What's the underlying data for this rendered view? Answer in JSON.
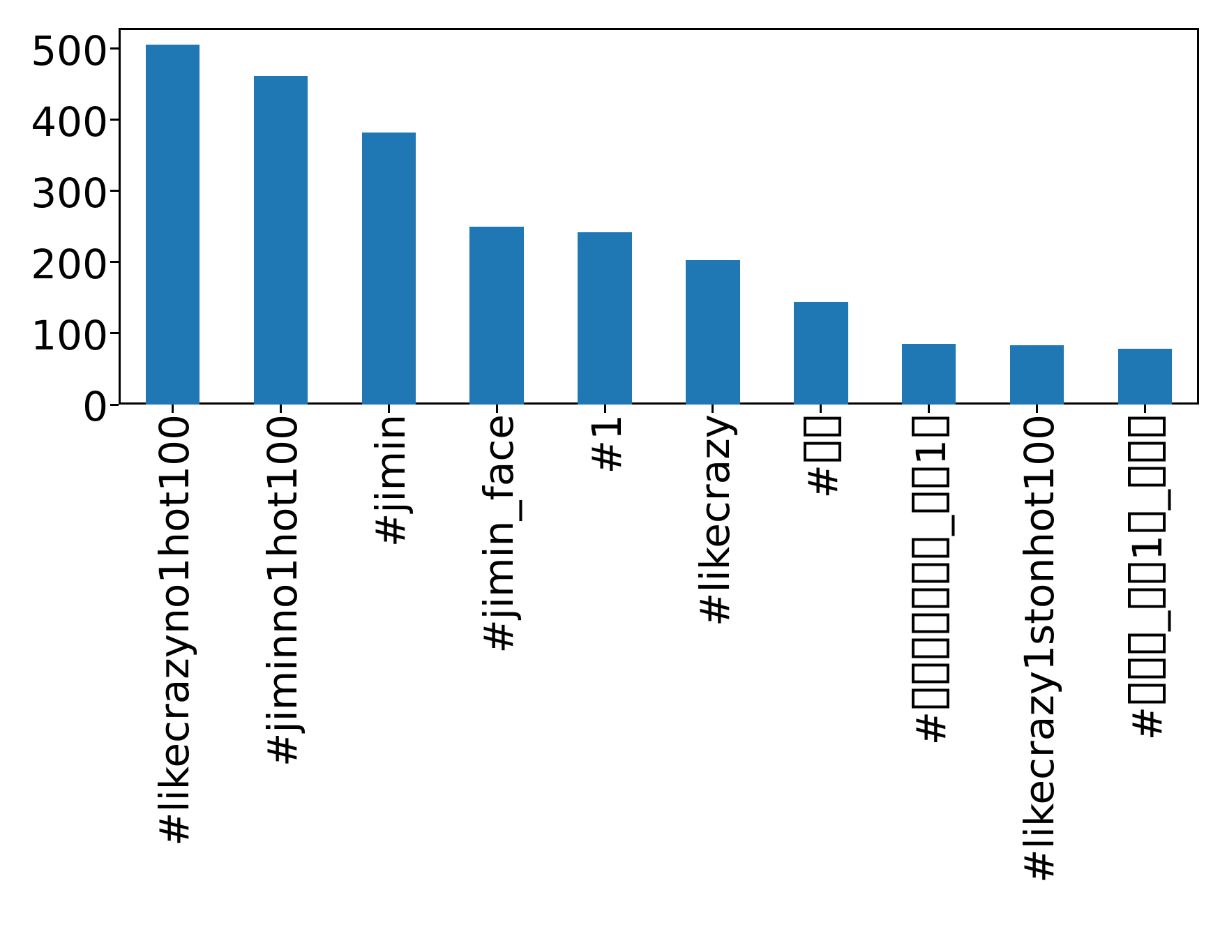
{
  "chart_data": {
    "type": "bar",
    "title": "",
    "xlabel": "",
    "ylabel": "",
    "categories": [
      "#likecrazyno1hot100",
      "#jiminno1hot100",
      "#jimin",
      "#jimin_face",
      "#1",
      "#likecrazy",
      "#▯▯",
      "#▯▯▯▯▯▯▯_▯▯1▯",
      "#likecrazy1stonhot100",
      "#▯▯▯_▯▯1▯_▯▯▯"
    ],
    "values": [
      505,
      461,
      382,
      250,
      242,
      203,
      144,
      85,
      83,
      78
    ],
    "yticks": [
      0,
      100,
      200,
      300,
      400,
      500
    ],
    "ylim": [
      0,
      529
    ],
    "bar_color": "#1f77b4",
    "axis_color": "#000000",
    "background_color": "#ffffff",
    "bar_width_fraction": 0.5,
    "tick_label_rotation": 90,
    "grid": false,
    "legend": null,
    "missing_glyph_char": "▯"
  }
}
